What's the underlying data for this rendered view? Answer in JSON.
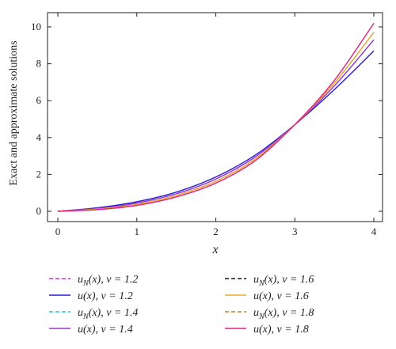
{
  "chart_data": {
    "type": "line",
    "xlabel": "x",
    "ylabel": "Exact and approximate solutions",
    "xlim": [
      0,
      4
    ],
    "ylim": [
      -0.3,
      10.5
    ],
    "xticks": [
      0,
      1,
      2,
      3,
      4
    ],
    "yticks": [
      0,
      2,
      4,
      6,
      8,
      10
    ],
    "grid": false,
    "legend_position": "bottom, two columns",
    "series": [
      {
        "name": "u_N(x), ν = 1.2",
        "color": "#cc33cc",
        "dashed": true,
        "x": [
          0,
          0.5,
          1,
          1.5,
          2,
          2.5,
          3,
          3.5,
          4
        ],
        "y": [
          0,
          0.19,
          0.52,
          1.04,
          1.86,
          3.05,
          4.7,
          6.6,
          8.7
        ]
      },
      {
        "name": "u(x), ν = 1.2",
        "color": "#2a1fd6",
        "dashed": false,
        "x": [
          0,
          0.5,
          1,
          1.5,
          2,
          2.5,
          3,
          3.5,
          4
        ],
        "y": [
          0,
          0.19,
          0.52,
          1.04,
          1.86,
          3.05,
          4.7,
          6.6,
          8.7
        ]
      },
      {
        "name": "u_N(x), ν = 1.4",
        "color": "#33bbdd",
        "dashed": true,
        "x": [
          0,
          0.5,
          1,
          1.5,
          2,
          2.5,
          3,
          3.5,
          4
        ],
        "y": [
          0,
          0.15,
          0.45,
          0.95,
          1.75,
          2.95,
          4.7,
          6.8,
          9.3
        ]
      },
      {
        "name": "u(x), ν = 1.4",
        "color": "#9933cc",
        "dashed": false,
        "x": [
          0,
          0.5,
          1,
          1.5,
          2,
          2.5,
          3,
          3.5,
          4
        ],
        "y": [
          0,
          0.15,
          0.45,
          0.95,
          1.75,
          2.95,
          4.7,
          6.8,
          9.3
        ]
      },
      {
        "name": "u_N(x), ν = 1.6",
        "color": "#111111",
        "dashed": true,
        "x": [
          0,
          0.5,
          1,
          1.5,
          2,
          2.5,
          3,
          3.5,
          4
        ],
        "y": [
          0,
          0.12,
          0.38,
          0.86,
          1.63,
          2.84,
          4.7,
          6.95,
          9.7
        ]
      },
      {
        "name": "u(x), ν = 1.6",
        "color": "#e6aa33",
        "dashed": false,
        "x": [
          0,
          0.5,
          1,
          1.5,
          2,
          2.5,
          3,
          3.5,
          4
        ],
        "y": [
          0,
          0.12,
          0.38,
          0.86,
          1.63,
          2.84,
          4.7,
          6.95,
          9.7
        ]
      },
      {
        "name": "u_N(x), ν = 1.8",
        "color": "#bb8833",
        "dashed": true,
        "x": [
          0,
          0.5,
          1,
          1.5,
          2,
          2.5,
          3,
          3.5,
          4
        ],
        "y": [
          0,
          0.09,
          0.32,
          0.78,
          1.53,
          2.75,
          4.7,
          7.1,
          10.2
        ]
      },
      {
        "name": "u(x), ν = 1.8",
        "color": "#e0227a",
        "dashed": false,
        "x": [
          0,
          0.5,
          1,
          1.5,
          2,
          2.5,
          3,
          3.5,
          4
        ],
        "y": [
          0,
          0.09,
          0.32,
          0.78,
          1.53,
          2.75,
          4.7,
          7.1,
          10.2
        ]
      }
    ]
  }
}
